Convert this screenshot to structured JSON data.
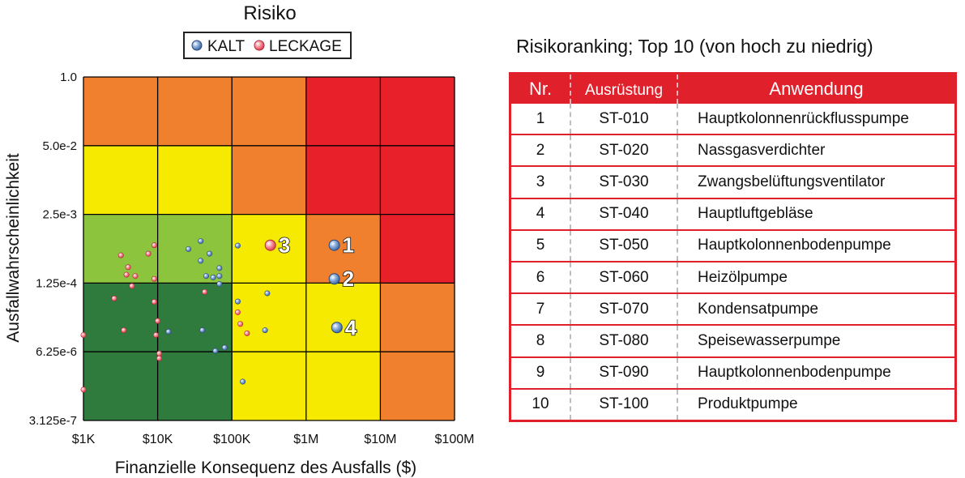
{
  "chart_data": {
    "type": "scatter",
    "title": "Risiko",
    "xlabel": "Finanzielle Konsequenz des Ausfalls ($)",
    "ylabel": "Ausfallwahrscheinlichkeit",
    "x_scale": "log",
    "y_scale": "log",
    "xlim": [
      1000,
      100000000
    ],
    "ylim": [
      3.125e-07,
      1.0
    ],
    "x_ticks": [
      {
        "value": 1000,
        "label": "$1K"
      },
      {
        "value": 10000,
        "label": "$10K"
      },
      {
        "value": 100000,
        "label": "$100K"
      },
      {
        "value": 1000000,
        "label": "$1M"
      },
      {
        "value": 10000000,
        "label": "$10M"
      },
      {
        "value": 100000000,
        "label": "$100M"
      }
    ],
    "y_ticks": [
      {
        "value": 1.0,
        "label": "1.0"
      },
      {
        "value": 0.05,
        "label": "5.0e-2"
      },
      {
        "value": 0.0025,
        "label": "2.5e-3"
      },
      {
        "value": 0.000125,
        "label": "1.25e-4"
      },
      {
        "value": 6.25e-06,
        "label": "6.25e-6"
      },
      {
        "value": 3.125e-07,
        "label": "3.125e-7"
      }
    ],
    "grid": true,
    "legend_position": "top",
    "risk_zone_colors": {
      "low": "#2f7a3d",
      "medium_low": "#8cc43e",
      "medium": "#f5ea00",
      "high": "#f07f2e",
      "very_high": "#e8202a"
    },
    "risk_matrix": [
      [
        "high",
        "high",
        "high",
        "very_high",
        "very_high"
      ],
      [
        "medium",
        "medium",
        "high",
        "very_high",
        "very_high"
      ],
      [
        "medium_low",
        "medium_low",
        "medium",
        "high",
        "very_high"
      ],
      [
        "low",
        "low",
        "medium",
        "medium",
        "high"
      ],
      [
        "low",
        "low",
        "medium",
        "medium",
        "high"
      ]
    ],
    "series": [
      {
        "name": "KALT",
        "color": "#5b86c2",
        "points": [
          [
            26000,
            0.00055
          ],
          [
            38000,
            0.00078
          ],
          [
            50000,
            0.00045
          ],
          [
            38000,
            0.00033
          ],
          [
            45000,
            0.00017
          ],
          [
            56000,
            0.00016
          ],
          [
            68000,
            0.00024
          ],
          [
            68000,
            0.00012
          ],
          [
            68000,
            0.00017
          ],
          [
            120000,
            0.00064
          ],
          [
            120000,
            5.6e-05
          ],
          [
            300000,
            8e-05
          ],
          [
            40000,
            1.6e-05
          ],
          [
            60000,
            6.5e-06
          ],
          [
            80000,
            7.5e-06
          ],
          [
            14000,
            1.5e-05
          ],
          [
            280000,
            1.6e-05
          ],
          [
            140000,
            1.7e-06
          ]
        ]
      },
      {
        "name": "LECKAGE",
        "color": "#f26d7d",
        "points": [
          [
            3200,
            0.00042
          ],
          [
            4000,
            0.00025
          ],
          [
            5000,
            0.00017
          ],
          [
            3800,
            0.00018
          ],
          [
            4500,
            0.00011
          ],
          [
            7500,
            0.00045
          ],
          [
            9000,
            0.00065
          ],
          [
            9000,
            0.00015
          ],
          [
            9000,
            5.5e-05
          ],
          [
            2600,
            6.4e-05
          ],
          [
            3500,
            1.6e-05
          ],
          [
            10000,
            2.4e-05
          ],
          [
            9500,
            1.3e-05
          ],
          [
            10500,
            5.8e-06
          ],
          [
            10500,
            4.7e-06
          ],
          [
            1000,
            1.3e-05
          ],
          [
            1000,
            1.2e-06
          ],
          [
            43000,
            8.5e-05
          ],
          [
            120000,
            3.5e-05
          ],
          [
            160000,
            1.4e-05
          ],
          [
            130000,
            2.1e-05
          ]
        ]
      }
    ],
    "highlighted": [
      {
        "label": "1",
        "series": "KALT",
        "x": 2400000,
        "y": 0.00065
      },
      {
        "label": "2",
        "series": "KALT",
        "x": 2400000,
        "y": 0.00015
      },
      {
        "label": "3",
        "series": "LECKAGE",
        "x": 330000,
        "y": 0.00065
      },
      {
        "label": "4",
        "series": "KALT",
        "x": 2600000,
        "y": 1.8e-05
      }
    ]
  },
  "table": {
    "title": "Risikoranking; Top 10 (von hoch zu niedrig)",
    "headers": {
      "nr": "Nr.",
      "equipment": "Ausrüstung",
      "application": "Anwendung"
    },
    "rows": [
      {
        "nr": "1",
        "equipment": "ST-010",
        "application": "Hauptkolonnenrückflusspumpe"
      },
      {
        "nr": "2",
        "equipment": "ST-020",
        "application": "Nassgasverdichter"
      },
      {
        "nr": "3",
        "equipment": "ST-030",
        "application": "Zwangsbelüftungsventilator"
      },
      {
        "nr": "4",
        "equipment": "ST-040",
        "application": "Hauptluftgebläse"
      },
      {
        "nr": "5",
        "equipment": "ST-050",
        "application": "Hauptkolonnenbodenpumpe"
      },
      {
        "nr": "6",
        "equipment": "ST-060",
        "application": "Heizölpumpe"
      },
      {
        "nr": "7",
        "equipment": "ST-070",
        "application": "Kondensatpumpe"
      },
      {
        "nr": "8",
        "equipment": "ST-080",
        "application": "Speisewasserpumpe"
      },
      {
        "nr": "9",
        "equipment": "ST-090",
        "application": "Hauptkolonnenbodenpumpe"
      },
      {
        "nr": "10",
        "equipment": "ST-100",
        "application": "Produktpumpe"
      }
    ]
  }
}
